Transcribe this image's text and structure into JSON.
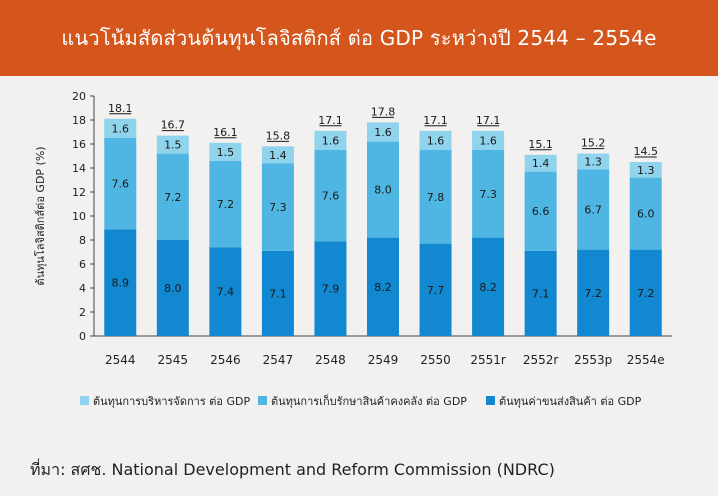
{
  "header": {
    "title": "แนวโน้มสัดส่วนต้นทุนโลจิสติกส์ ต่อ GDP ระหว่างปี 2544 – 2554e"
  },
  "footer": {
    "source": "ที่มา: สศช. National Development and Reform Commission (NDRC)"
  },
  "colors": {
    "header_bg": "#d4561c",
    "series_admin": "#8fd3ec",
    "series_inventory": "#4fb6e3",
    "series_transport": "#1188cf"
  },
  "chart_data": {
    "type": "bar",
    "stacked": true,
    "title": "",
    "xlabel": "",
    "ylabel": "ต้นทุนโลจิสติกส์ต่อ GDP (%)",
    "ylim": [
      0,
      20
    ],
    "yticks": [
      0,
      2,
      4,
      6,
      8,
      10,
      12,
      14,
      16,
      18,
      20
    ],
    "grid": false,
    "legend_position": "bottom",
    "categories": [
      "2544",
      "2545",
      "2546",
      "2547",
      "2548",
      "2549",
      "2550",
      "2551r",
      "2552r",
      "2553p",
      "2554e"
    ],
    "series": [
      {
        "name": "ต้นทุนค่าขนส่งสินค้า ต่อ GDP",
        "values": [
          8.9,
          8.0,
          7.4,
          7.1,
          7.9,
          8.2,
          7.7,
          8.2,
          7.1,
          7.2,
          7.2
        ]
      },
      {
        "name": "ต้นทุนการเก็บรักษาสินค้าคงคลัง ต่อ GDP",
        "values": [
          7.6,
          7.2,
          7.2,
          7.3,
          7.6,
          8.0,
          7.8,
          7.3,
          6.6,
          6.7,
          6.0
        ]
      },
      {
        "name": "ต้นทุนการบริหารจัดการ ต่อ GDP",
        "values": [
          1.6,
          1.5,
          1.5,
          1.4,
          1.6,
          1.6,
          1.6,
          1.6,
          1.4,
          1.3,
          1.3
        ]
      }
    ],
    "totals": [
      "18.1",
      "16.7",
      "16.1",
      "15.8",
      "17.1",
      "17.8",
      "17.1",
      "17.1",
      "15.1",
      "15.2",
      "14.5"
    ],
    "legend_order": [
      "ต้นทุนการบริหารจัดการ ต่อ GDP",
      "ต้นทุนการเก็บรักษาสินค้าคงคลัง ต่อ GDP",
      "ต้นทุนค่าขนส่งสินค้า ต่อ GDP"
    ]
  }
}
